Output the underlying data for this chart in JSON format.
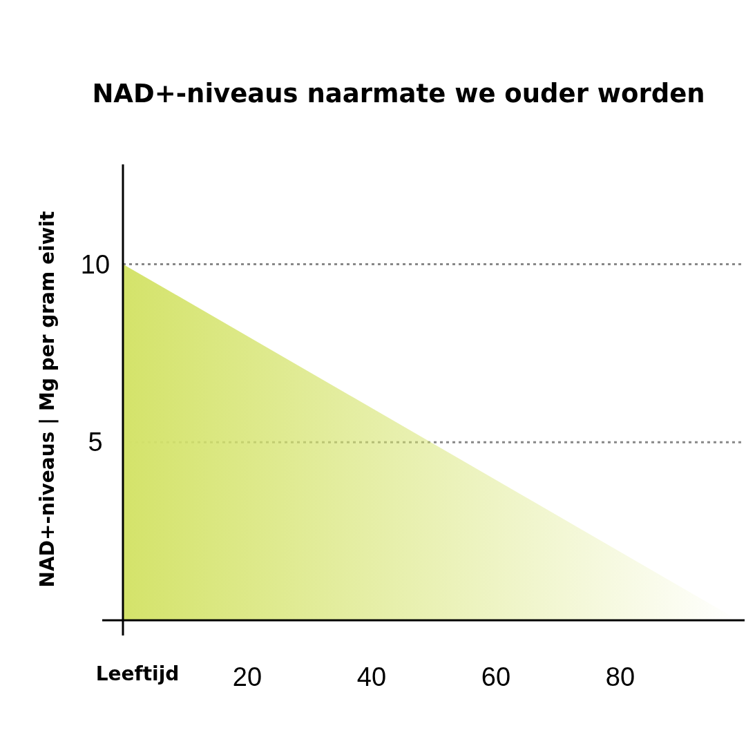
{
  "chart_data": {
    "type": "area",
    "title": "NAD+-niveaus naarmate we ouder worden",
    "xlabel": "Leeftijd",
    "ylabel": "NAD+-niveaus | Mg per gram eiwit",
    "x": [
      0,
      99
    ],
    "series": [
      {
        "color": "#d4e36a",
        "values": [
          10,
          0
        ]
      }
    ],
    "xlim": [
      0,
      100
    ],
    "xticks": [
      20,
      40,
      60,
      80
    ],
    "ylim": [
      0,
      12.8
    ],
    "yticks": [
      {
        "value": 0,
        "label": null
      },
      5,
      10
    ],
    "grid": "y",
    "line_style": "dotted"
  }
}
